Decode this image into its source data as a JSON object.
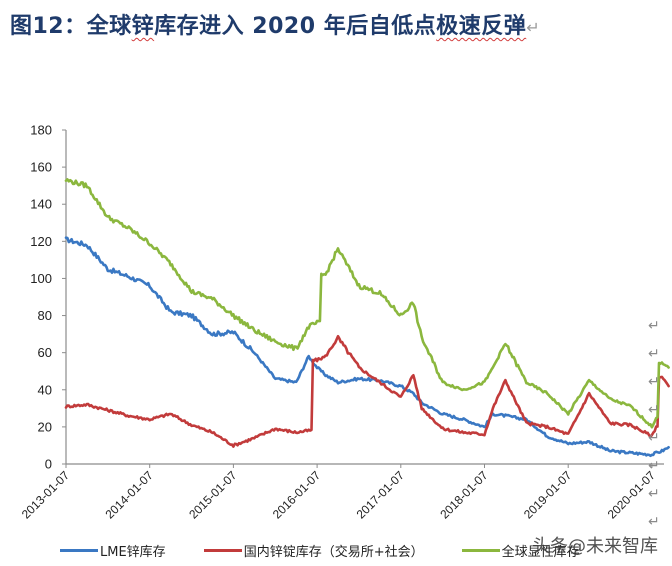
{
  "title": {
    "prefix": "图12：全球",
    "squiggle1": "锌",
    "middle": "库存进入 2020 年后自低点",
    "squiggle2": "极速反弹",
    "return_mark": "↵"
  },
  "watermark": "头条@未来智库",
  "paragraph_marks": [
    "↵",
    "↵",
    "↵",
    "↵",
    "↵",
    "↵",
    "↵",
    "↵",
    "↵",
    "↵"
  ],
  "chart_data": {
    "type": "line",
    "title": "图12：全球锌库存进入 2020 年后自低点极速反弹",
    "xlabel": "",
    "ylabel": "",
    "ylim": [
      0,
      180
    ],
    "yticks": [
      0,
      20,
      40,
      60,
      80,
      100,
      120,
      140,
      160,
      180
    ],
    "xticks": [
      "2013-01-07",
      "2014-01-07",
      "2015-01-07",
      "2016-01-07",
      "2017-01-07",
      "2018-01-07",
      "2019-01-07",
      "2020-01-07"
    ],
    "grid": false,
    "legend_position": "bottom",
    "x": [
      2013.0,
      2013.25,
      2013.5,
      2013.75,
      2014.0,
      2014.25,
      2014.5,
      2014.75,
      2015.0,
      2015.25,
      2015.5,
      2015.75,
      2015.9,
      2016.0,
      2016.1,
      2016.25,
      2016.5,
      2016.75,
      2017.0,
      2017.15,
      2017.25,
      2017.5,
      2017.75,
      2018.0,
      2018.1,
      2018.25,
      2018.5,
      2018.75,
      2019.0,
      2019.25,
      2019.5,
      2019.75,
      2020.0,
      2020.05,
      2020.12,
      2020.2
    ],
    "series": [
      {
        "name": "LME锌库存",
        "color": "#3a78c3",
        "values": [
          121,
          118,
          105,
          101,
          96,
          82,
          80,
          70,
          71,
          60,
          46,
          44,
          58,
          52,
          48,
          44,
          46,
          45,
          42,
          38,
          33,
          27,
          24,
          20,
          27,
          26,
          24,
          15,
          11,
          12,
          7,
          6,
          5,
          6,
          7,
          9
        ]
      },
      {
        "name": "国内锌锭库存（交易所+社会）",
        "color": "#c23b3b",
        "values": [
          31,
          32,
          29,
          26,
          24,
          27,
          21,
          17,
          10,
          14,
          19,
          17,
          18,
          56,
          58,
          68,
          52,
          44,
          36,
          48,
          30,
          19,
          17,
          16,
          30,
          45,
          22,
          20,
          16,
          38,
          22,
          21,
          15,
          20,
          47,
          42
        ]
      },
      {
        "name": "全球显性库存",
        "color": "#8bb73e",
        "values": [
          153,
          150,
          133,
          127,
          119,
          108,
          93,
          89,
          80,
          72,
          66,
          62,
          74,
          76,
          102,
          116,
          96,
          92,
          80,
          87,
          68,
          44,
          40,
          44,
          52,
          65,
          44,
          38,
          27,
          45,
          35,
          31,
          20,
          25,
          54,
          52
        ]
      }
    ]
  },
  "legend": [
    {
      "label": "LME锌库存",
      "color": "#3a78c3"
    },
    {
      "label": "国内锌锭库存（交易所+社会）",
      "color": "#c23b3b"
    },
    {
      "label": "全球显性库存",
      "color": "#8bb73e"
    }
  ]
}
